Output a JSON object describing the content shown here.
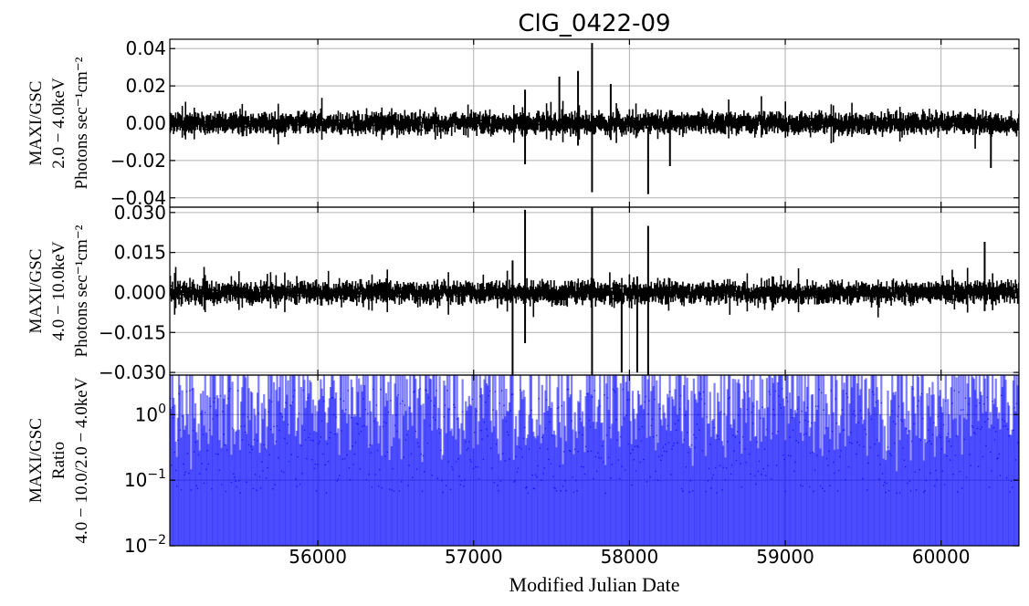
{
  "chart_data": {
    "type": "errorbar-lightcurve",
    "title": "ClG_0422-09",
    "xlabel": "Modified Julian Date",
    "xlim": [
      55050,
      60500
    ],
    "xticks": [
      56000,
      57000,
      58000,
      59000,
      60000
    ],
    "xtick_labels": [
      "56000",
      "57000",
      "58000",
      "59000",
      "60000"
    ],
    "grid": true,
    "panels": [
      {
        "name": "soft",
        "ylabel_lines": [
          "MAXI/GSC",
          "2.0 − 4.0keV",
          "Photons sec⁻¹cm⁻²"
        ],
        "ylim": [
          -0.045,
          0.045
        ],
        "yticks": [
          -0.04,
          -0.02,
          0.0,
          0.02,
          0.04
        ],
        "ytick_labels": [
          "−0.04",
          "−0.02",
          "0.00",
          "0.02",
          "0.04"
        ],
        "color": "#000000",
        "notable_points": [
          {
            "x": 57760,
            "y": 0.003,
            "err": 0.04
          },
          {
            "x": 57670,
            "y": 0.008,
            "err": 0.02
          },
          {
            "x": 57550,
            "y": 0.01,
            "err": 0.015
          },
          {
            "x": 57330,
            "y": -0.002,
            "err": 0.02
          },
          {
            "x": 58120,
            "y": -0.02,
            "err": 0.018
          },
          {
            "x": 57880,
            "y": 0.006,
            "err": 0.015
          },
          {
            "x": 58260,
            "y": -0.008,
            "err": 0.015
          },
          {
            "x": 60320,
            "y": -0.012,
            "err": 0.012
          }
        ]
      },
      {
        "name": "hard",
        "ylabel_lines": [
          "MAXI/GSC",
          "4.0 − 10.0keV",
          "Photons sec⁻¹cm⁻²"
        ],
        "ylim": [
          -0.031,
          0.032
        ],
        "yticks": [
          -0.03,
          -0.015,
          0.0,
          0.015,
          0.03
        ],
        "ytick_labels": [
          "−0.030",
          "−0.015",
          "0.000",
          "0.015",
          "0.030"
        ],
        "color": "#000000",
        "notable_points": [
          {
            "x": 57760,
            "y": 0.0,
            "err": 0.032
          },
          {
            "x": 57330,
            "y": 0.006,
            "err": 0.025
          },
          {
            "x": 58120,
            "y": -0.005,
            "err": 0.03
          },
          {
            "x": 57950,
            "y": -0.015,
            "err": 0.015
          },
          {
            "x": 57250,
            "y": -0.01,
            "err": 0.022
          },
          {
            "x": 58050,
            "y": -0.012,
            "err": 0.018
          },
          {
            "x": 60280,
            "y": 0.006,
            "err": 0.013
          }
        ]
      },
      {
        "name": "ratio",
        "ylabel_lines": [
          "MAXI/GSC",
          "Ratio",
          "4.0 − 10.0/2.0 − 4.0keV"
        ],
        "scale": "log",
        "ylim": [
          0.01,
          4.0
        ],
        "yticks": [
          0.01,
          0.1,
          1.0
        ],
        "ytick_labels": [
          "10",
          "10",
          "10"
        ],
        "ytick_exponents": [
          "−2",
          "−1",
          "0"
        ],
        "color": "#0000ff"
      }
    ]
  }
}
